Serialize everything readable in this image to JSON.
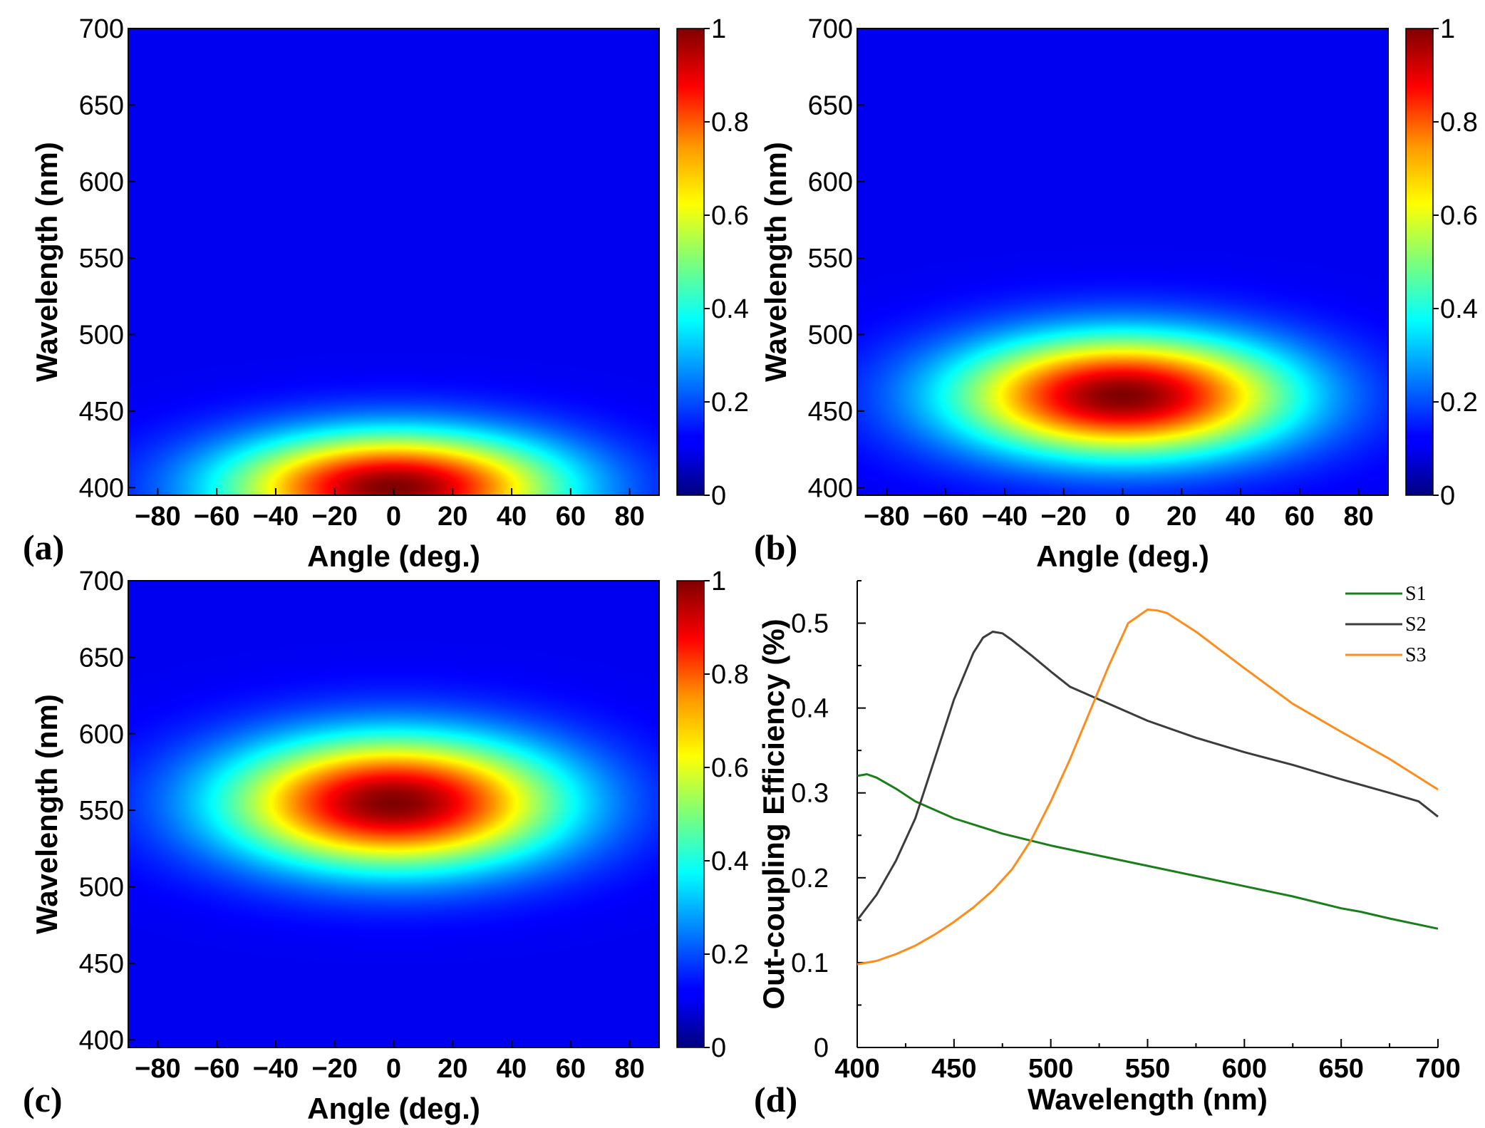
{
  "colors": {
    "S1": "#1a7f1a",
    "S2": "#3c3c3c",
    "S3": "#ff8c1a"
  },
  "chart_data": [
    {
      "panel": "(a)",
      "type": "heatmap",
      "xlabel": "Angle (deg.)",
      "ylabel": "Wavelength (nm)",
      "xlim": [
        -90,
        90
      ],
      "ylim": [
        395,
        700
      ],
      "xticks": [
        "−80",
        "−60",
        "−40",
        "−20",
        "0",
        "20",
        "40",
        "60",
        "80"
      ],
      "yticks": [
        "700",
        "650",
        "600",
        "550",
        "500",
        "450",
        "400"
      ],
      "colorbar": {
        "range": [
          0,
          1
        ],
        "ticks": [
          "1",
          "0.8",
          "0.6",
          "0.4",
          "0.2",
          "0"
        ],
        "colormap": "jet"
      },
      "peak": {
        "angle": 0,
        "wavelength": 400,
        "value": 1,
        "angle_halfwidth": 90,
        "wavelength_halfwidth": 50
      }
    },
    {
      "panel": "(b)",
      "type": "heatmap",
      "xlabel": "Angle (deg.)",
      "ylabel": "Wavelength (nm)",
      "xlim": [
        -90,
        90
      ],
      "ylim": [
        395,
        700
      ],
      "xticks": [
        "−80",
        "−60",
        "−40",
        "−20",
        "0",
        "20",
        "40",
        "60",
        "80"
      ],
      "yticks": [
        "700",
        "650",
        "600",
        "550",
        "500",
        "450",
        "400"
      ],
      "colorbar": {
        "range": [
          0,
          1
        ],
        "ticks": [
          "1",
          "0.8",
          "0.6",
          "0.4",
          "0.2",
          "0"
        ],
        "colormap": "jet"
      },
      "peak": {
        "angle": 0,
        "wavelength": 460,
        "value": 1,
        "angle_halfwidth": 90,
        "wavelength_halfwidth": 55
      }
    },
    {
      "panel": "(c)",
      "type": "heatmap",
      "xlabel": "Angle (deg.)",
      "ylabel": "Wavelength (nm)",
      "xlim": [
        -90,
        90
      ],
      "ylim": [
        395,
        700
      ],
      "xticks": [
        "−80",
        "−60",
        "−40",
        "−20",
        "0",
        "20",
        "40",
        "60",
        "80"
      ],
      "yticks": [
        "700",
        "650",
        "600",
        "550",
        "500",
        "450",
        "400"
      ],
      "colorbar": {
        "range": [
          0,
          1
        ],
        "ticks": [
          "1",
          "0.8",
          "0.6",
          "0.4",
          "0.2",
          "0"
        ],
        "colormap": "jet"
      },
      "peak": {
        "angle": 0,
        "wavelength": 555,
        "value": 1,
        "angle_halfwidth": 90,
        "wavelength_halfwidth": 60
      }
    },
    {
      "panel": "(d)",
      "type": "line",
      "xlabel": "Wavelength (nm)",
      "ylabel": "Out-coupling Efficiency (%)",
      "xlim": [
        400,
        700
      ],
      "ylim": [
        0,
        0.55
      ],
      "xticks": [
        "400",
        "450",
        "500",
        "550",
        "600",
        "650",
        "700"
      ],
      "yticks": [
        "0.5",
        "0.4",
        "0.3",
        "0.2",
        "0.1",
        "0"
      ],
      "legend_position": "top-right",
      "series": [
        {
          "name": "S1",
          "x": [
            400,
            405,
            410,
            420,
            430,
            450,
            475,
            500,
            525,
            550,
            575,
            600,
            625,
            650,
            660,
            675,
            700
          ],
          "y": [
            0.32,
            0.322,
            0.318,
            0.305,
            0.29,
            0.27,
            0.252,
            0.238,
            0.226,
            0.214,
            0.202,
            0.19,
            0.178,
            0.164,
            0.16,
            0.152,
            0.14
          ]
        },
        {
          "name": "S2",
          "x": [
            400,
            410,
            420,
            430,
            440,
            450,
            460,
            465,
            470,
            475,
            480,
            490,
            500,
            510,
            525,
            550,
            575,
            600,
            625,
            650,
            675,
            690,
            700
          ],
          "y": [
            0.15,
            0.18,
            0.22,
            0.27,
            0.34,
            0.41,
            0.465,
            0.483,
            0.49,
            0.488,
            0.48,
            0.462,
            0.443,
            0.425,
            0.41,
            0.385,
            0.365,
            0.348,
            0.333,
            0.316,
            0.3,
            0.29,
            0.272
          ]
        },
        {
          "name": "S3",
          "x": [
            400,
            405,
            410,
            420,
            430,
            440,
            450,
            460,
            470,
            480,
            490,
            500,
            510,
            520,
            530,
            540,
            550,
            555,
            560,
            575,
            600,
            625,
            650,
            675,
            700
          ],
          "y": [
            0.098,
            0.1,
            0.102,
            0.11,
            0.12,
            0.133,
            0.148,
            0.165,
            0.185,
            0.21,
            0.245,
            0.29,
            0.34,
            0.395,
            0.45,
            0.5,
            0.516,
            0.515,
            0.512,
            0.49,
            0.447,
            0.405,
            0.372,
            0.34,
            0.304
          ]
        }
      ]
    }
  ]
}
